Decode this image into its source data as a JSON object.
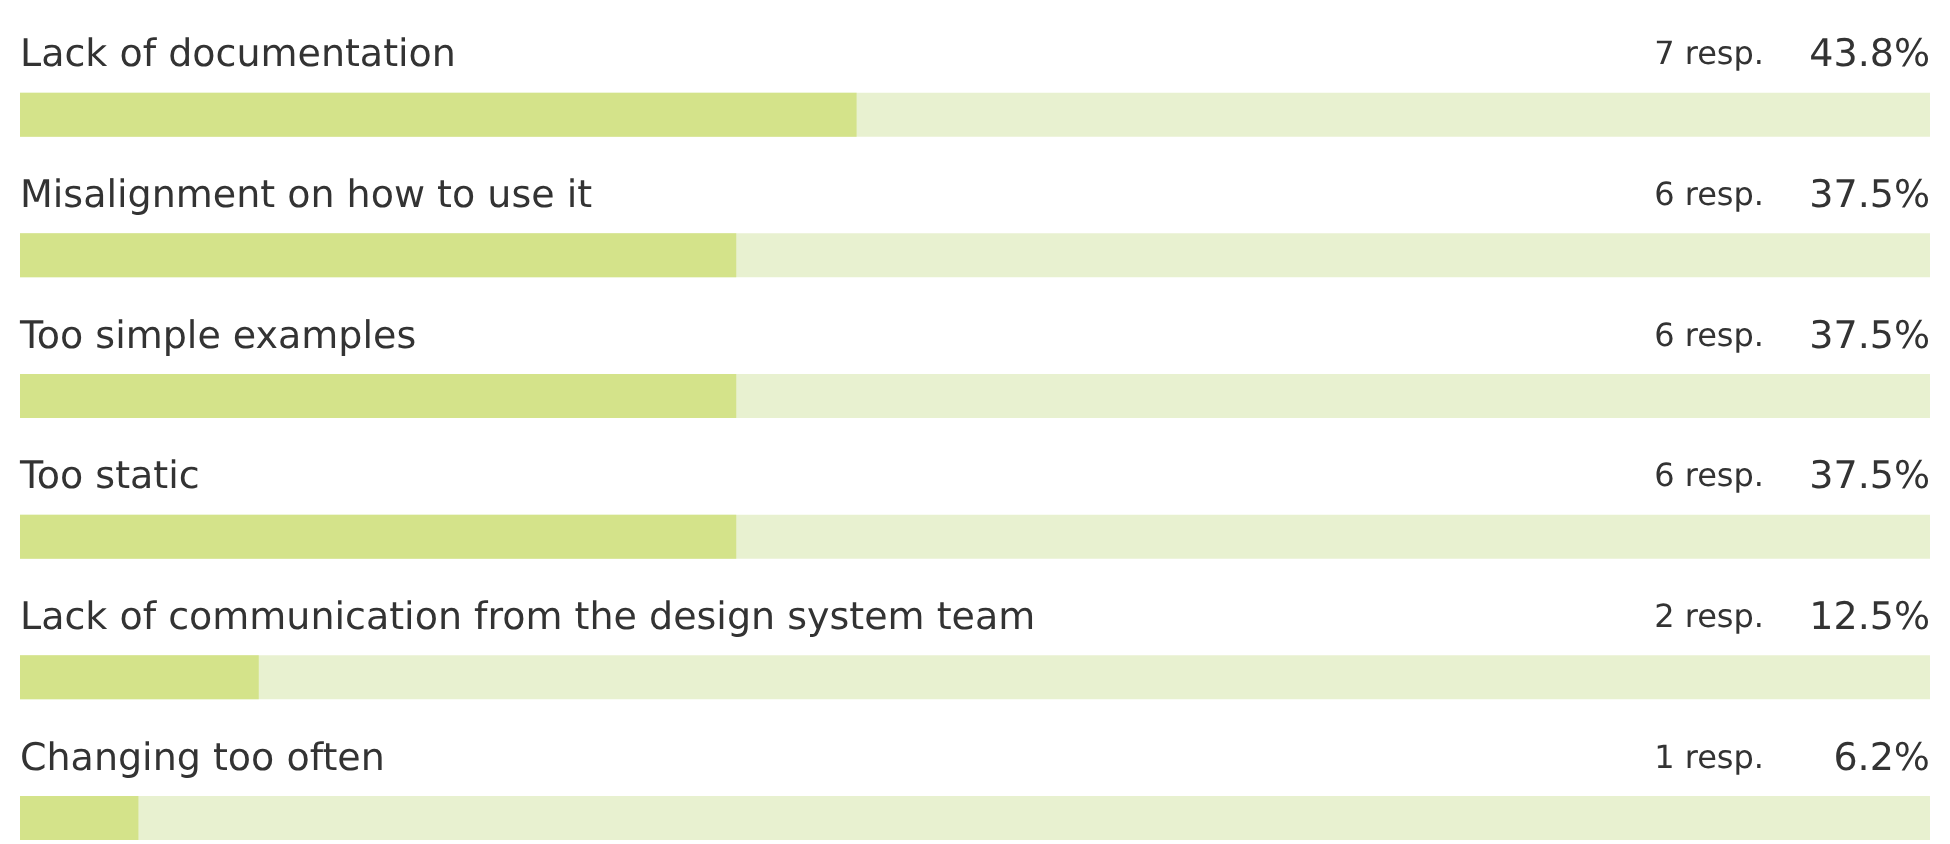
{
  "chart_data": {
    "type": "bar",
    "orientation": "horizontal",
    "categories": [
      "Lack of documentation",
      "Misalignment on how to use it",
      "Too simple examples",
      "Too static",
      "Lack of communication from the design system team",
      "Changing too often"
    ],
    "values": [
      43.8,
      37.5,
      37.5,
      37.5,
      12.5,
      6.2
    ],
    "value_labels": [
      "43.8%",
      "37.5%",
      "37.5%",
      "37.5%",
      "12.5%",
      "6.2%"
    ],
    "color": "#d4e38a",
    "xlim": [
      0,
      100
    ],
    "annotations": [
      "7 resp.",
      "6 resp.",
      "6 resp.",
      "6 resp.",
      "2 resp.",
      "1 resp."
    ]
  }
}
